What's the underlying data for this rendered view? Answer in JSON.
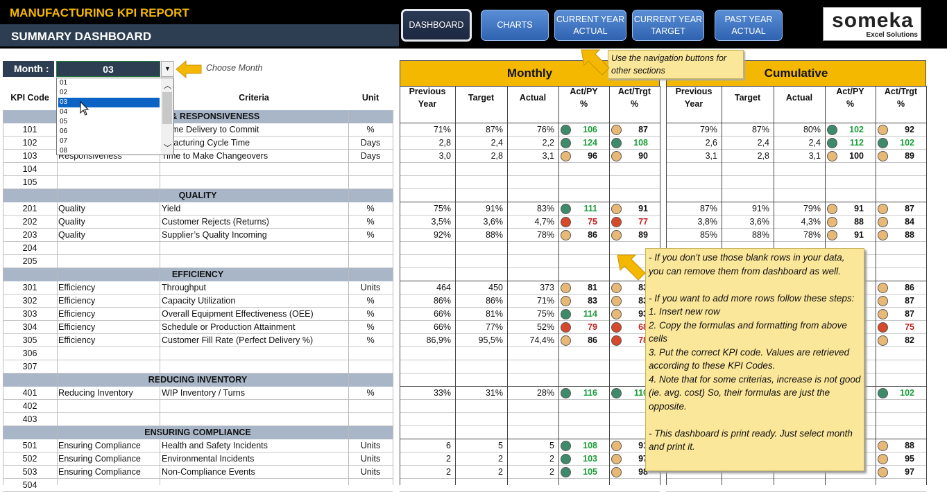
{
  "header": {
    "report_title": "MANUFACTURING KPI REPORT",
    "dashboard_title": "SUMMARY DASHBOARD"
  },
  "nav": {
    "dashboard": "DASHBOARD",
    "charts": "CHARTS",
    "cy_actual_1": "CURRENT YEAR",
    "cy_actual_2": "ACTUAL",
    "cy_target_1": "CURRENT YEAR",
    "cy_target_2": "TARGET",
    "py_actual_1": "PAST YEAR",
    "py_actual_2": "ACTUAL"
  },
  "logo": {
    "word": "someka",
    "sub": "Excel Solutions"
  },
  "month": {
    "label": "Month :",
    "value": "03",
    "hint": "Choose Month",
    "options": [
      "01",
      "02",
      "03",
      "04",
      "05",
      "06",
      "07",
      "08"
    ],
    "selected_index": 2
  },
  "tooltips": {
    "nav": "Use the navigation buttons for other sections",
    "help": [
      "- If you don't use those blank rows in your data, you can remove them from dashboard as well.",
      "",
      "- If you want to add more rows follow these steps:",
      "1. Insert new row",
      "2. Copy the formulas and formatting from above cells",
      "3. Put the correct KPI code. Values are retrieved according to these KPI Codes.",
      "4. Note that for some criterias, increase is not good (ie. avg. cost) So, their formulas are just the opposite.",
      "",
      "- This dashboard is print ready. Just select month and print it."
    ]
  },
  "bands": {
    "monthly": "Monthly",
    "cumulative": "Cumulative"
  },
  "columns": {
    "kpi_code": "KPI Code",
    "criteria": "Criteria",
    "unit": "Unit",
    "prev_year_1": "Previous",
    "prev_year_2": "Year",
    "target": "Target",
    "actual": "Actual",
    "act_py_1": "Act/PY",
    "act_py_2": "%",
    "act_trgt_1": "Act/Trgt",
    "act_trgt_2": "%"
  },
  "colors": {
    "green": "#3e8b6c",
    "yellow": "#e8b976",
    "red": "#d8482a",
    "accent": "#f5b800",
    "navy": "#2d3d52"
  },
  "rows": [
    {
      "type": "sec",
      "title": "RIENCE & RESPONSIVENESS"
    },
    {
      "code": "101",
      "cat": "",
      "crit": "-Time Delivery to Commit",
      "unit": "%",
      "m": [
        "71%",
        "87%",
        "76%",
        "g",
        "106",
        "y",
        "87"
      ],
      "c": [
        "79%",
        "87%",
        "80%",
        "g",
        "102",
        "y",
        "92"
      ]
    },
    {
      "code": "102",
      "cat": "",
      "crit": "nufacturing Cycle Time",
      "unit": "Days",
      "m": [
        "2,8",
        "2,4",
        "2,2",
        "g",
        "124",
        "g",
        "108"
      ],
      "c": [
        "2,6",
        "2,4",
        "2,4",
        "g",
        "112",
        "g",
        "102"
      ]
    },
    {
      "code": "103",
      "cat": "Responsiveness",
      "crit": "Time to Make Changeovers",
      "unit": "Days",
      "m": [
        "3,0",
        "2,8",
        "3,1",
        "y",
        "96",
        "y",
        "90"
      ],
      "c": [
        "3,1",
        "2,8",
        "3,1",
        "y",
        "100",
        "y",
        "89"
      ]
    },
    {
      "code": "104"
    },
    {
      "code": "105"
    },
    {
      "type": "sec",
      "title": "QUALITY"
    },
    {
      "code": "201",
      "cat": "Quality",
      "crit": "Yield",
      "unit": "%",
      "m": [
        "75%",
        "91%",
        "83%",
        "g",
        "111",
        "y",
        "91"
      ],
      "c": [
        "87%",
        "91%",
        "79%",
        "y",
        "91",
        "y",
        "87"
      ]
    },
    {
      "code": "202",
      "cat": "Quality",
      "crit": "Customer Rejects (Returns)",
      "unit": "%",
      "m": [
        "3,5%",
        "3,6%",
        "4,7%",
        "rd",
        "75",
        "rd",
        "77"
      ],
      "c": [
        "3,8%",
        "3,6%",
        "4,3%",
        "y",
        "88",
        "y",
        "84"
      ]
    },
    {
      "code": "203",
      "cat": "Quality",
      "crit": "Supplier’s Quality Incoming",
      "unit": "%",
      "m": [
        "92%",
        "88%",
        "78%",
        "y",
        "86",
        "y",
        "89"
      ],
      "c": [
        "85%",
        "88%",
        "78%",
        "y",
        "91",
        "y",
        "88"
      ]
    },
    {
      "code": "204"
    },
    {
      "code": "205"
    },
    {
      "type": "sec",
      "title": "EFFICIENCY"
    },
    {
      "code": "301",
      "cat": "Efficiency",
      "crit": "Throughput",
      "unit": "Units",
      "m": [
        "464",
        "450",
        "373",
        "y",
        "81",
        "y",
        "83"
      ],
      "c": [
        "",
        "",
        "",
        "",
        "",
        "y",
        "86"
      ]
    },
    {
      "code": "302",
      "cat": "Efficiency",
      "crit": "Capacity Utilization",
      "unit": "%",
      "m": [
        "86%",
        "86%",
        "71%",
        "y",
        "83",
        "y",
        "83"
      ],
      "c": [
        "",
        "",
        "",
        "",
        "",
        "y",
        "87"
      ]
    },
    {
      "code": "303",
      "cat": "Efficiency",
      "crit": "Overall Equipment Effectiveness (OEE)",
      "unit": "%",
      "m": [
        "66%",
        "81%",
        "75%",
        "g",
        "114",
        "y",
        "93"
      ],
      "c": [
        "",
        "",
        "",
        "",
        "",
        "y",
        "87"
      ]
    },
    {
      "code": "304",
      "cat": "Efficiency",
      "crit": "Schedule or Production Attainment",
      "unit": "%",
      "m": [
        "66%",
        "77%",
        "52%",
        "rd",
        "79",
        "rd",
        "68"
      ],
      "c": [
        "",
        "",
        "",
        "",
        "",
        "rd",
        "75"
      ]
    },
    {
      "code": "305",
      "cat": "Efficiency",
      "crit": "Customer Fill Rate (Perfect Delivery %)",
      "unit": "%",
      "m": [
        "86,9%",
        "95,5%",
        "74,4%",
        "y",
        "86",
        "rd",
        "78"
      ],
      "c": [
        "",
        "",
        "",
        "",
        "",
        "y",
        "82"
      ]
    },
    {
      "code": "306"
    },
    {
      "code": "307"
    },
    {
      "type": "sec",
      "title": "REDUCING INVENTORY"
    },
    {
      "code": "401",
      "cat": "Reducing Inventory",
      "crit": "WIP Inventory / Turns",
      "unit": "%",
      "m": [
        "33%",
        "31%",
        "28%",
        "g",
        "116",
        "g",
        "110"
      ],
      "c": [
        "",
        "",
        "",
        "",
        "",
        "g",
        "102"
      ]
    },
    {
      "code": "402"
    },
    {
      "code": "403"
    },
    {
      "type": "sec",
      "title": "ENSURING COMPLIANCE"
    },
    {
      "code": "501",
      "cat": "Ensuring Compliance",
      "crit": "Health and Safety Incidents",
      "unit": "Units",
      "m": [
        "6",
        "5",
        "5",
        "g",
        "108",
        "y",
        "91"
      ],
      "c": [
        "",
        "",
        "",
        "",
        "",
        "y",
        "88"
      ]
    },
    {
      "code": "502",
      "cat": "Ensuring Compliance",
      "crit": "Environmental Incidents",
      "unit": "Units",
      "m": [
        "2",
        "2",
        "2",
        "g",
        "103",
        "y",
        "97"
      ],
      "c": [
        "",
        "",
        "",
        "",
        "",
        "y",
        "95"
      ]
    },
    {
      "code": "503",
      "cat": "Ensuring Compliance",
      "crit": "Non-Compliance Events",
      "unit": "Units",
      "m": [
        "2",
        "2",
        "2",
        "g",
        "105",
        "y",
        "98"
      ],
      "c": [
        "",
        "",
        "",
        "",
        "",
        "y",
        "97"
      ]
    },
    {
      "code": "504"
    }
  ]
}
